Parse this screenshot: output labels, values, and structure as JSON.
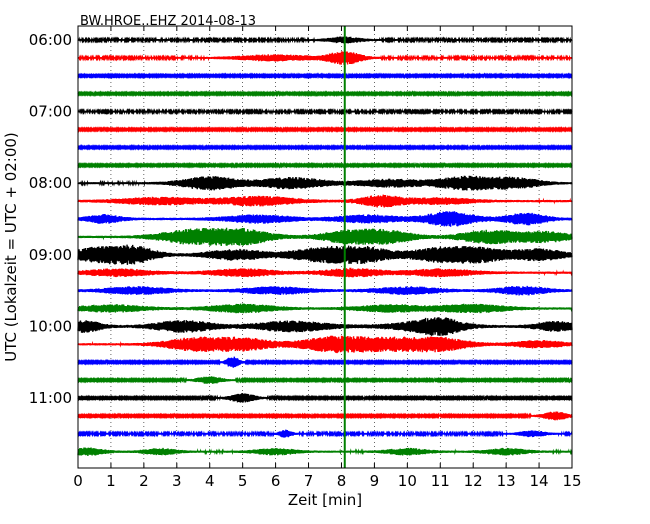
{
  "chart_data": {
    "type": "line",
    "title": "BW.HROE..EHZ 2014-08-13",
    "xlabel": "Zeit  [min]",
    "ylabel": "UTC (Lokalzeit = UTC + 02:00)",
    "xlim": [
      0,
      15
    ],
    "x_ticks": [
      "0",
      "1",
      "2",
      "3",
      "4",
      "5",
      "6",
      "7",
      "8",
      "9",
      "10",
      "11",
      "12",
      "13",
      "14",
      "15"
    ],
    "y_ticks": [
      {
        "row": 0,
        "label": "06:00"
      },
      {
        "row": 4,
        "label": "07:00"
      },
      {
        "row": 8,
        "label": "08:00"
      },
      {
        "row": 12,
        "label": "09:00"
      },
      {
        "row": 16,
        "label": "10:00"
      },
      {
        "row": 20,
        "label": "11:00"
      }
    ],
    "grid": true,
    "row_interval_minutes": 15,
    "trace_colors": [
      "#000000",
      "#ff0000",
      "#0000ff",
      "#008000"
    ],
    "marker": {
      "x": 8.1,
      "color": "#008000"
    },
    "rows": [
      {
        "start": "06:00",
        "noise": 0.35,
        "bursts": [
          [
            8.1,
            1.2,
            0.4
          ]
        ]
      },
      {
        "start": "06:15",
        "noise": 0.35,
        "bursts": [
          [
            6.0,
            1.2,
            0.9
          ],
          [
            8.1,
            2.5,
            0.4
          ]
        ]
      },
      {
        "start": "06:30",
        "noise": 0.3,
        "bursts": []
      },
      {
        "start": "06:45",
        "noise": 0.3,
        "bursts": []
      },
      {
        "start": "07:00",
        "noise": 0.35,
        "bursts": []
      },
      {
        "start": "07:15",
        "noise": 0.3,
        "bursts": []
      },
      {
        "start": "07:30",
        "noise": 0.3,
        "bursts": []
      },
      {
        "start": "07:45",
        "noise": 0.3,
        "bursts": []
      },
      {
        "start": "08:00",
        "noise": 0.4,
        "bursts": [
          [
            4.0,
            2.6,
            0.7
          ],
          [
            6.5,
            2.2,
            0.8
          ],
          [
            9.5,
            1.5,
            0.8
          ],
          [
            11.8,
            2.6,
            0.7
          ],
          [
            13.3,
            2.0,
            0.6
          ]
        ]
      },
      {
        "start": "08:15",
        "noise": 0.45,
        "bursts": [
          [
            2.5,
            1.4,
            1.0
          ],
          [
            5.5,
            1.8,
            0.9
          ],
          [
            9.2,
            2.2,
            0.5
          ],
          [
            11.0,
            1.2,
            0.8
          ]
        ]
      },
      {
        "start": "08:30",
        "noise": 0.5,
        "bursts": [
          [
            0.8,
            1.6,
            0.4
          ],
          [
            5.5,
            1.5,
            0.8
          ],
          [
            8.8,
            1.4,
            0.8
          ],
          [
            11.3,
            2.8,
            0.6
          ],
          [
            13.6,
            2.2,
            0.5
          ]
        ]
      },
      {
        "start": "08:45",
        "noise": 0.45,
        "bursts": [
          [
            3.5,
            2.8,
            0.8
          ],
          [
            5.0,
            2.8,
            0.7
          ],
          [
            8.3,
            2.6,
            0.7
          ],
          [
            9.5,
            2.0,
            0.6
          ],
          [
            12.5,
            2.6,
            0.7
          ],
          [
            14.2,
            2.0,
            0.6
          ]
        ]
      },
      {
        "start": "09:00",
        "noise": 0.5,
        "bursts": [
          [
            0.7,
            3.0,
            0.7
          ],
          [
            1.8,
            2.6,
            0.5
          ],
          [
            4.8,
            2.0,
            0.7
          ],
          [
            7.5,
            2.8,
            0.8
          ],
          [
            8.8,
            2.4,
            0.6
          ],
          [
            11.0,
            2.8,
            0.7
          ],
          [
            12.3,
            2.4,
            0.6
          ],
          [
            14.0,
            2.2,
            0.6
          ]
        ]
      },
      {
        "start": "09:15",
        "noise": 0.45,
        "bursts": [
          [
            1.2,
            1.4,
            0.8
          ],
          [
            5.0,
            1.4,
            0.8
          ],
          [
            8.3,
            1.6,
            0.7
          ],
          [
            11.0,
            1.4,
            0.8
          ]
        ]
      },
      {
        "start": "09:30",
        "noise": 0.45,
        "bursts": [
          [
            1.8,
            1.4,
            0.8
          ],
          [
            6.0,
            1.4,
            0.8
          ],
          [
            10.0,
            1.4,
            0.8
          ],
          [
            13.5,
            1.6,
            0.6
          ]
        ]
      },
      {
        "start": "09:45",
        "noise": 0.45,
        "bursts": [
          [
            1.0,
            1.4,
            0.8
          ],
          [
            5.0,
            1.6,
            0.8
          ],
          [
            9.5,
            1.4,
            0.8
          ],
          [
            12.0,
            1.6,
            0.8
          ]
        ]
      },
      {
        "start": "10:00",
        "noise": 0.5,
        "bursts": [
          [
            0.2,
            2.2,
            0.4
          ],
          [
            3.2,
            2.2,
            0.7
          ],
          [
            6.5,
            2.0,
            0.9
          ],
          [
            10.5,
            1.6,
            0.9
          ],
          [
            11.0,
            2.2,
            0.5
          ],
          [
            14.5,
            1.8,
            0.5
          ]
        ]
      },
      {
        "start": "10:15",
        "noise": 0.45,
        "bursts": [
          [
            3.5,
            2.4,
            0.7
          ],
          [
            5.0,
            2.4,
            0.7
          ],
          [
            7.8,
            3.0,
            0.8
          ],
          [
            9.5,
            2.2,
            0.8
          ],
          [
            11.0,
            2.4,
            0.7
          ],
          [
            14.0,
            1.4,
            0.6
          ]
        ]
      },
      {
        "start": "10:30",
        "noise": 0.3,
        "bursts": [
          [
            4.7,
            2.2,
            0.15
          ]
        ]
      },
      {
        "start": "10:45",
        "noise": 0.3,
        "bursts": [
          [
            4.0,
            1.4,
            0.3
          ]
        ]
      },
      {
        "start": "11:00",
        "noise": 0.3,
        "bursts": [
          [
            5.0,
            1.8,
            0.3
          ]
        ]
      },
      {
        "start": "11:15",
        "noise": 0.3,
        "bursts": [
          [
            14.5,
            1.6,
            0.3
          ]
        ]
      },
      {
        "start": "11:30",
        "noise": 0.35,
        "bursts": [
          [
            6.3,
            1.4,
            0.15
          ],
          [
            13.8,
            1.2,
            0.3
          ]
        ]
      },
      {
        "start": "11:45",
        "noise": 0.4,
        "bursts": [
          [
            0.3,
            1.4,
            0.4
          ],
          [
            2.5,
            1.2,
            0.4
          ],
          [
            6.0,
            1.2,
            0.5
          ],
          [
            10.0,
            1.2,
            0.5
          ],
          [
            13.0,
            1.2,
            0.5
          ]
        ]
      }
    ]
  }
}
